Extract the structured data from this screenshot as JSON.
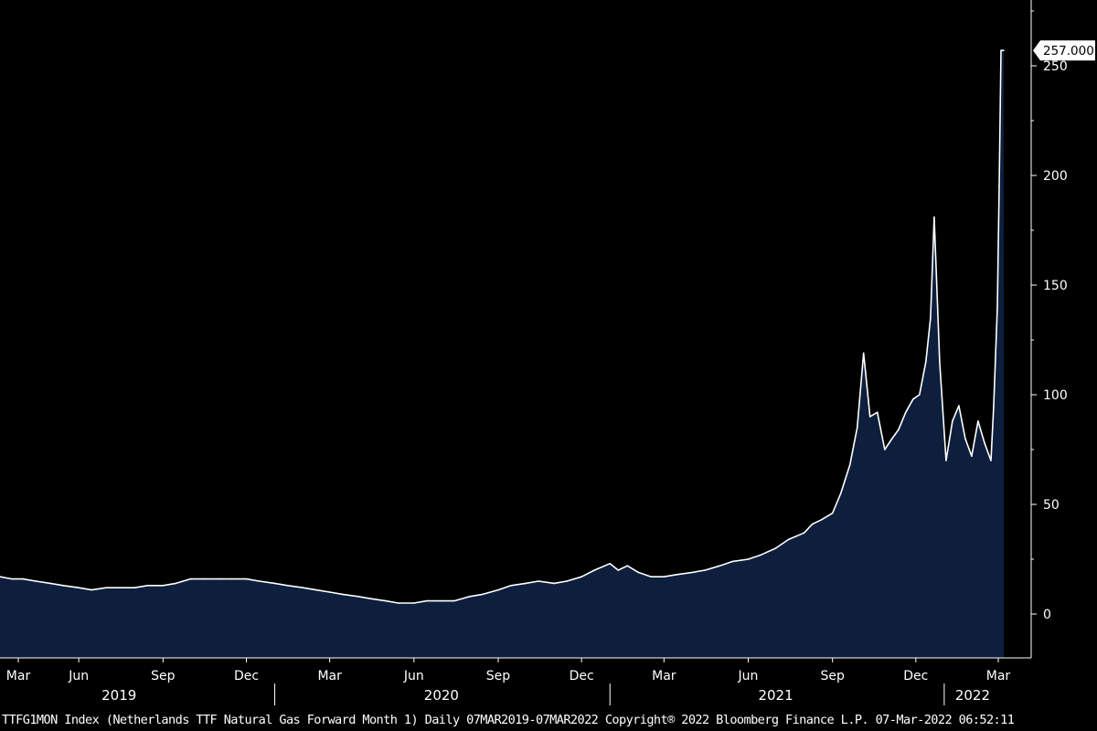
{
  "footer": {
    "text": "TTFG1MON Index (Netherlands TTF Natural Gas Forward Month 1)  Daily 07MAR2019-07MAR2022 Copyright® 2022 Bloomberg Finance L.P. 07-Mar-2022 06:52:11"
  },
  "colors": {
    "background": "#000000",
    "area_fill": "#0d1f3c",
    "line": "#ffffff",
    "axis": "#ffffff",
    "text": "#ffffff",
    "callout_bg": "#ffffff",
    "callout_text": "#000000"
  },
  "chart_data": {
    "type": "area",
    "title": "",
    "xlabel": "",
    "ylabel": "",
    "xlim": [
      "2019-03-07",
      "2022-03-07"
    ],
    "ylim": [
      -20,
      280
    ],
    "y_ticks": [
      0,
      50,
      100,
      150,
      200,
      250
    ],
    "x_tick_labels": [
      {
        "date": "2019-03-01",
        "label": "Mar"
      },
      {
        "date": "2019-06-01",
        "label": "Jun"
      },
      {
        "date": "2019-09-01",
        "label": "Sep"
      },
      {
        "date": "2019-12-01",
        "label": "Dec"
      },
      {
        "date": "2020-03-01",
        "label": "Mar"
      },
      {
        "date": "2020-06-01",
        "label": "Jun"
      },
      {
        "date": "2020-09-01",
        "label": "Sep"
      },
      {
        "date": "2020-12-01",
        "label": "Dec"
      },
      {
        "date": "2021-03-01",
        "label": "Mar"
      },
      {
        "date": "2021-06-01",
        "label": "Jun"
      },
      {
        "date": "2021-09-01",
        "label": "Sep"
      },
      {
        "date": "2021-12-01",
        "label": "Dec"
      },
      {
        "date": "2022-03-01",
        "label": "Mar"
      }
    ],
    "year_labels": [
      {
        "date": "2019-07-15",
        "label": "2019"
      },
      {
        "date": "2020-07-01",
        "label": "2020"
      },
      {
        "date": "2021-07-01",
        "label": "2021"
      },
      {
        "date": "2022-02-01",
        "label": "2022"
      }
    ],
    "year_separators": [
      "2020-01-01",
      "2021-01-01",
      "2022-01-01"
    ],
    "last_value_label": "257.000",
    "last_value": 257.0,
    "series": [
      {
        "x": [
          "2019-03-07",
          "2019-03-20",
          "2019-04-01",
          "2019-04-15",
          "2019-05-01",
          "2019-05-15",
          "2019-06-01",
          "2019-06-15",
          "2019-07-01",
          "2019-07-15",
          "2019-08-01",
          "2019-08-15",
          "2019-09-01",
          "2019-09-15",
          "2019-10-01",
          "2019-10-15",
          "2019-11-01",
          "2019-11-15",
          "2019-12-01",
          "2019-12-15",
          "2020-01-01",
          "2020-01-15",
          "2020-02-01",
          "2020-02-15",
          "2020-03-01",
          "2020-03-15",
          "2020-04-01",
          "2020-04-15",
          "2020-05-01",
          "2020-05-15",
          "2020-06-01",
          "2020-06-15",
          "2020-07-01",
          "2020-07-15",
          "2020-08-01",
          "2020-08-15",
          "2020-09-01",
          "2020-09-15",
          "2020-10-01",
          "2020-10-15",
          "2020-11-01",
          "2020-11-15",
          "2020-12-01",
          "2020-12-15",
          "2021-01-01",
          "2021-01-10",
          "2021-01-20",
          "2021-02-01",
          "2021-02-15",
          "2021-03-01",
          "2021-03-15",
          "2021-04-01",
          "2021-04-15",
          "2021-05-01",
          "2021-05-15",
          "2021-06-01",
          "2021-06-15",
          "2021-07-01",
          "2021-07-15",
          "2021-08-01",
          "2021-08-10",
          "2021-08-20",
          "2021-09-01",
          "2021-09-10",
          "2021-09-20",
          "2021-09-28",
          "2021-10-05",
          "2021-10-12",
          "2021-10-20",
          "2021-10-28",
          "2021-11-05",
          "2021-11-12",
          "2021-11-20",
          "2021-11-28",
          "2021-12-05",
          "2021-12-12",
          "2021-12-17",
          "2021-12-21",
          "2021-12-27",
          "2022-01-03",
          "2022-01-10",
          "2022-01-17",
          "2022-01-24",
          "2022-01-31",
          "2022-02-07",
          "2022-02-14",
          "2022-02-21",
          "2022-02-24",
          "2022-02-28",
          "2022-03-02",
          "2022-03-04",
          "2022-03-07"
        ],
        "values": [
          17,
          16,
          16,
          15,
          14,
          13,
          12,
          11,
          12,
          12,
          12,
          13,
          13,
          14,
          16,
          16,
          16,
          16,
          16,
          15,
          14,
          13,
          12,
          11,
          10,
          9,
          8,
          7,
          6,
          5,
          5,
          6,
          6,
          6,
          8,
          9,
          11,
          13,
          14,
          15,
          14,
          15,
          17,
          20,
          23,
          20,
          22,
          19,
          17,
          17,
          18,
          19,
          20,
          22,
          24,
          25,
          27,
          30,
          34,
          37,
          41,
          43,
          46,
          55,
          68,
          85,
          119,
          90,
          92,
          75,
          80,
          84,
          92,
          98,
          100,
          115,
          135,
          181,
          115,
          70,
          88,
          95,
          80,
          72,
          88,
          78,
          70,
          95,
          140,
          195,
          257,
          257
        ]
      }
    ]
  }
}
